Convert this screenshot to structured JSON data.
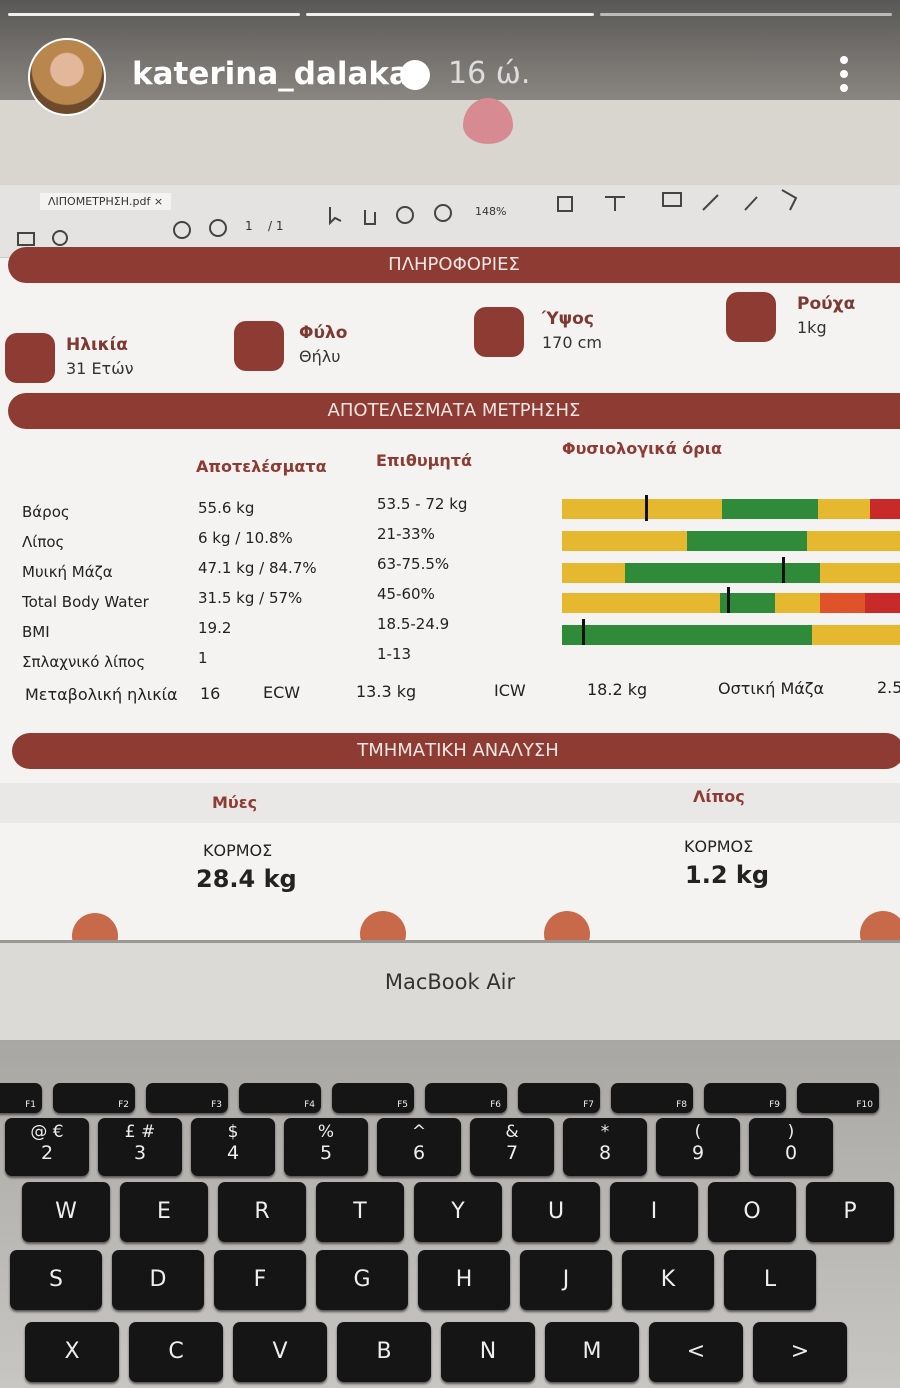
{
  "story": {
    "username": "katerina_dalaka",
    "time": "16 ώ."
  },
  "pdf_viewer": {
    "file_name": "ΛΙΠΟΜΕΤΡΗΣΗ.pdf",
    "page": "1",
    "page_total": "/ 1",
    "zoom": "148%"
  },
  "report": {
    "info": {
      "title": "ΠΛΗΡΟΦΟΡΙΕΣ",
      "items": [
        {
          "label": "Ηλικία",
          "value": "31 Ετών"
        },
        {
          "label": "Φύλο",
          "value": "Θήλυ"
        },
        {
          "label": "Ύψος",
          "value": "170 cm"
        },
        {
          "label": "Ρούχα",
          "value": "1kg"
        }
      ]
    },
    "results": {
      "title": "ΑΠΟΤΕΛΕΣΜΑΤΑ ΜΕΤΡΗΣΗΣ",
      "columns": [
        "Αποτελέσματα",
        "Επιθυμητά",
        "Φυσιολογικά όρια"
      ],
      "rows": [
        [
          "Βάρος",
          "55.6 kg",
          "53.5 - 72 kg"
        ],
        [
          "Λίπος",
          "6 kg / 10.8%",
          "21-33%"
        ],
        [
          "Μυική Μάζα",
          "47.1 kg / 84.7%",
          "63-75.5%"
        ],
        [
          "Total Body Water",
          "31.5 kg / 57%",
          "45-60%"
        ],
        [
          "BMI",
          "19.2",
          "18.5-24.9"
        ],
        [
          "Σπλαχνικό λίπος",
          "1",
          "1-13"
        ]
      ],
      "extra": [
        "Μεταβολική ηλικία",
        "16",
        "ECW",
        "13.3 kg",
        "ICW",
        "18.2 kg",
        "Οστική Μάζα",
        "2.5"
      ]
    },
    "segmental": {
      "title": "ΤΜΗΜΑΤΙΚΗ ΑΝΑΛΥΣΗ",
      "groups": [
        {
          "title": "Μύες",
          "part": "ΚΟΡΜΟΣ",
          "value": "28.4 kg"
        },
        {
          "title": "Λίπος",
          "part": "ΚΟΡΜΟΣ",
          "value": "1.2 kg"
        }
      ]
    }
  },
  "laptop": {
    "model": "MacBook Air",
    "keyboard": {
      "function_row": [
        "F1",
        "F2",
        "F3",
        "F4",
        "F5",
        "F6",
        "F7",
        "F8",
        "F9",
        "F10"
      ],
      "number_row": [
        {
          "top": "@ €",
          "main": "2"
        },
        {
          "top": "£ #",
          "main": "3"
        },
        {
          "top": "$",
          "main": "4"
        },
        {
          "top": "%",
          "main": "5"
        },
        {
          "top": "^",
          "main": "6"
        },
        {
          "top": "&",
          "main": "7"
        },
        {
          "top": "*",
          "main": "8"
        },
        {
          "top": "(",
          "main": "9"
        },
        {
          "top": ")",
          "main": "0"
        }
      ],
      "top_row": [
        "W",
        "E",
        "R",
        "T",
        "Y",
        "U",
        "I",
        "O",
        "P"
      ],
      "home_row": [
        "S",
        "D",
        "F",
        "G",
        "H",
        "J",
        "K",
        "L"
      ],
      "bottom_row": [
        "X",
        "C",
        "V",
        "B",
        "N",
        "M",
        "<",
        ">"
      ]
    }
  }
}
